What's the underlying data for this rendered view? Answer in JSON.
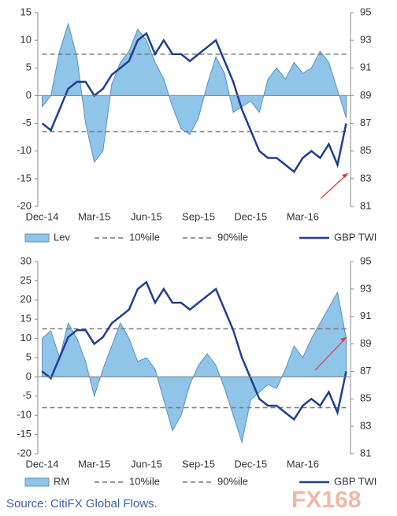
{
  "chart_data": [
    {
      "type": "combo",
      "categories": [
        "Dec-14",
        null,
        null,
        null,
        null,
        null,
        "Mar-15",
        null,
        null,
        null,
        null,
        null,
        "Jun-15",
        null,
        null,
        null,
        null,
        null,
        "Sep-15",
        null,
        null,
        null,
        null,
        null,
        "Dec-15",
        null,
        null,
        null,
        null,
        null,
        "Mar-16",
        null,
        null,
        null,
        null,
        null
      ],
      "ylim": [
        -20,
        15
      ],
      "yticks": [
        -20,
        -15,
        -10,
        -5,
        0,
        5,
        10,
        15
      ],
      "y2lim": [
        81,
        95
      ],
      "y2ticks": [
        81,
        83,
        85,
        87,
        89,
        91,
        93,
        95
      ],
      "series": [
        {
          "name": "Lev",
          "type": "area",
          "color": "#8ec5e8",
          "values": [
            -2,
            0,
            8,
            13,
            7,
            -5,
            -12,
            -10,
            2,
            6,
            8,
            12,
            10,
            6,
            3,
            -2,
            -6,
            -7,
            -4,
            2,
            7,
            4,
            -3,
            -2,
            -1,
            -3,
            3,
            5,
            3,
            6,
            4,
            5,
            8,
            6,
            1,
            -4
          ]
        },
        {
          "name": "10%ile",
          "type": "dashed",
          "color": "#777777",
          "values": [
            -6.5,
            -6.5,
            -6.5,
            -6.5,
            -6.5,
            -6.5,
            -6.5,
            -6.5,
            -6.5,
            -6.5,
            -6.5,
            -6.5,
            -6.5,
            -6.5,
            -6.5,
            -6.5,
            -6.5,
            -6.5,
            -6.5,
            -6.5,
            -6.5,
            -6.5,
            -6.5,
            -6.5,
            -6.5,
            -6.5,
            -6.5,
            -6.5,
            -6.5,
            -6.5,
            -6.5,
            -6.5,
            -6.5,
            -6.5,
            -6.5,
            -6.5
          ]
        },
        {
          "name": "90%ile",
          "type": "dashed",
          "color": "#777777",
          "values": [
            7.5,
            7.5,
            7.5,
            7.5,
            7.5,
            7.5,
            7.5,
            7.5,
            7.5,
            7.5,
            7.5,
            7.5,
            7.5,
            7.5,
            7.5,
            7.5,
            7.5,
            7.5,
            7.5,
            7.5,
            7.5,
            7.5,
            7.5,
            7.5,
            7.5,
            7.5,
            7.5,
            7.5,
            7.5,
            7.5,
            7.5,
            7.5,
            7.5,
            7.5,
            7.5,
            7.5
          ]
        },
        {
          "name": "GBP TWI",
          "type": "line",
          "axis": "y2",
          "color": "#1f3f8f",
          "values": [
            87,
            86.5,
            88,
            89.5,
            90,
            90,
            89,
            89.5,
            90.5,
            91,
            91.5,
            93,
            93.5,
            92,
            93,
            92,
            92,
            91.5,
            92,
            92.5,
            93,
            91.5,
            90,
            88,
            86.5,
            85,
            84.5,
            84.5,
            84,
            83.5,
            84.5,
            85,
            84.5,
            85.5,
            84,
            87
          ]
        }
      ]
    },
    {
      "type": "combo",
      "categories": [
        "Dec-14",
        null,
        null,
        null,
        null,
        null,
        "Mar-15",
        null,
        null,
        null,
        null,
        null,
        "Jun-15",
        null,
        null,
        null,
        null,
        null,
        "Sep-15",
        null,
        null,
        null,
        null,
        null,
        "Dec-15",
        null,
        null,
        null,
        null,
        null,
        "Mar-16",
        null,
        null,
        null,
        null,
        null
      ],
      "ylim": [
        -20,
        30
      ],
      "yticks": [
        -20,
        -15,
        -10,
        -5,
        0,
        5,
        10,
        15,
        20,
        25,
        30
      ],
      "y2lim": [
        81,
        95
      ],
      "y2ticks": [
        81,
        83,
        85,
        87,
        89,
        91,
        93,
        95
      ],
      "series": [
        {
          "name": "RM",
          "type": "area",
          "color": "#8ec5e8",
          "values": [
            10,
            12,
            5,
            14,
            10,
            4,
            -5,
            2,
            8,
            14,
            10,
            4,
            5,
            2,
            -6,
            -14,
            -10,
            -2,
            3,
            6,
            3,
            -3,
            -10,
            -17,
            -6,
            -4,
            -2,
            -3,
            2,
            8,
            5,
            10,
            14,
            18,
            22,
            10
          ]
        },
        {
          "name": "10%ile",
          "type": "dashed",
          "color": "#777777",
          "values": [
            -8,
            -8,
            -8,
            -8,
            -8,
            -8,
            -8,
            -8,
            -8,
            -8,
            -8,
            -8,
            -8,
            -8,
            -8,
            -8,
            -8,
            -8,
            -8,
            -8,
            -8,
            -8,
            -8,
            -8,
            -8,
            -8,
            -8,
            -8,
            -8,
            -8,
            -8,
            -8,
            -8,
            -8,
            -8,
            -8
          ]
        },
        {
          "name": "90%ile",
          "type": "dashed",
          "color": "#777777",
          "values": [
            12.5,
            12.5,
            12.5,
            12.5,
            12.5,
            12.5,
            12.5,
            12.5,
            12.5,
            12.5,
            12.5,
            12.5,
            12.5,
            12.5,
            12.5,
            12.5,
            12.5,
            12.5,
            12.5,
            12.5,
            12.5,
            12.5,
            12.5,
            12.5,
            12.5,
            12.5,
            12.5,
            12.5,
            12.5,
            12.5,
            12.5,
            12.5,
            12.5,
            12.5,
            12.5,
            12.5
          ]
        },
        {
          "name": "GBP TWI",
          "type": "line",
          "axis": "y2",
          "color": "#1f3f8f",
          "values": [
            87,
            86.5,
            88,
            89.5,
            90,
            90,
            89,
            89.5,
            90.5,
            91,
            91.5,
            93,
            93.5,
            92,
            93,
            92,
            92,
            91.5,
            92,
            92.5,
            93,
            91.5,
            90,
            88,
            86.5,
            85,
            84.5,
            84.5,
            84,
            83.5,
            84.5,
            85,
            84.5,
            85.5,
            84,
            87
          ]
        }
      ]
    }
  ],
  "source": "Source: CitiFX Global Flows.",
  "watermark": "FX168"
}
